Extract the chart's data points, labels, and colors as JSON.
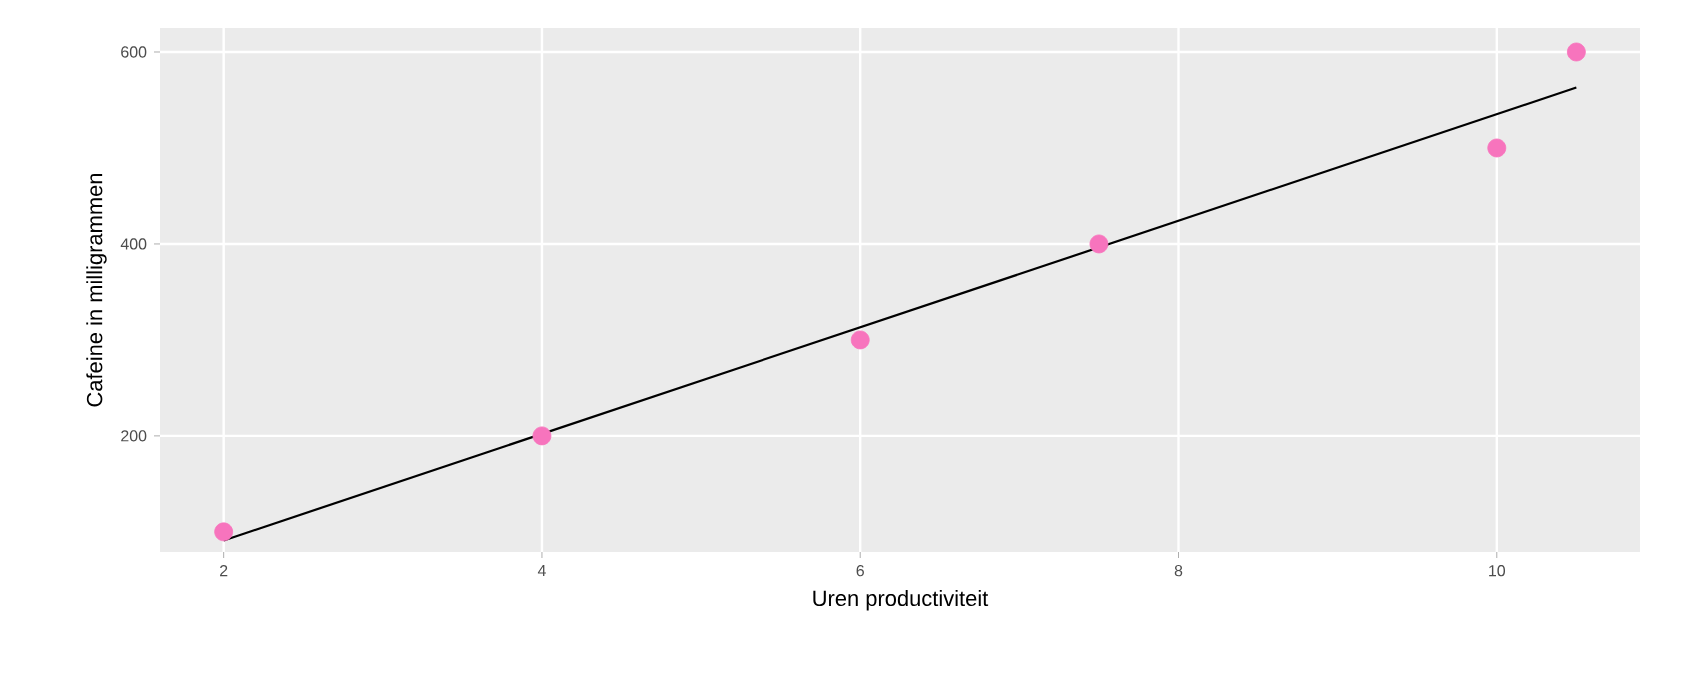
{
  "chart_data": {
    "type": "scatter",
    "xlabel": "Uren productiviteit",
    "ylabel": "Cafeine in milligrammen",
    "xlim": [
      1.6,
      10.9
    ],
    "ylim": [
      79,
      625
    ],
    "xticks": [
      2,
      4,
      6,
      8,
      10
    ],
    "yticks": [
      200,
      400,
      600
    ],
    "grid": true,
    "series": [
      {
        "marker": "circle",
        "color": "#f774bd",
        "x": [
          2,
          4,
          6,
          7.5,
          10,
          10.5
        ],
        "values": [
          100,
          200,
          300,
          400,
          500,
          600
        ]
      },
      {
        "type": "line",
        "marker": "none",
        "color": "#000000",
        "x": [
          2,
          10.5
        ],
        "values": [
          91,
          563
        ]
      }
    ]
  }
}
